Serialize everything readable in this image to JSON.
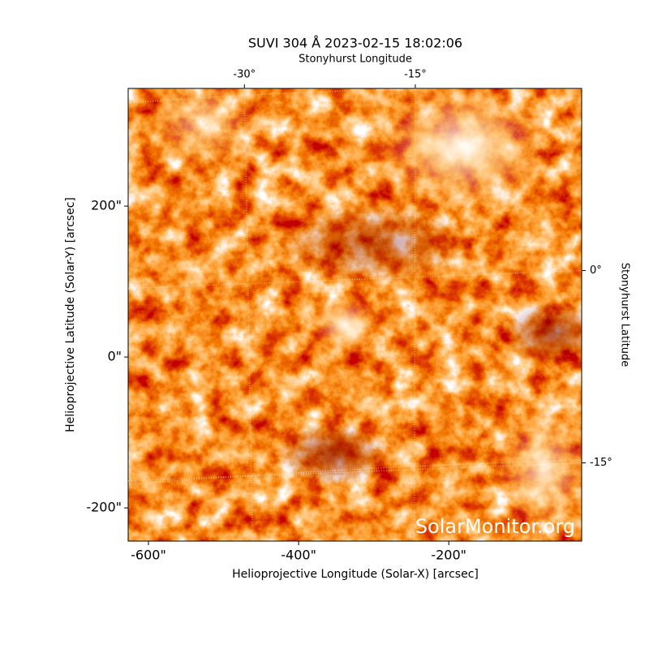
{
  "chart_data": {
    "type": "image",
    "title": "SUVI 304 Å 2023-02-15 18:02:06",
    "xlabel": "Helioprojective Longitude (Solar-X) [arcsec]",
    "ylabel": "Helioprojective Latitude (Solar-Y) [arcsec]",
    "x2label": "Stonyhurst Longitude",
    "y2label": "Stonyhurst Latitude",
    "xlim": [
      -627,
      -23
    ],
    "ylim": [
      -244,
      356
    ],
    "xticks": [
      {
        "value": -600,
        "label": "-600\""
      },
      {
        "value": -400,
        "label": "-400\""
      },
      {
        "value": -200,
        "label": "-200\""
      }
    ],
    "yticks": [
      {
        "value": -200,
        "label": "-200\""
      },
      {
        "value": 0,
        "label": "0\""
      },
      {
        "value": 200,
        "label": "200\""
      }
    ],
    "x2lim": [
      -40.2,
      -0.4
    ],
    "x2ticks": [
      {
        "value": -30,
        "label": "-30°"
      },
      {
        "value": -15,
        "label": "-15°"
      }
    ],
    "y2lim": [
      -21.1,
      14.2
    ],
    "y2ticks": [
      {
        "value": -15,
        "label": "-15°"
      },
      {
        "value": 0,
        "label": "0°"
      }
    ],
    "watermark": "SolarMonitor.org"
  }
}
